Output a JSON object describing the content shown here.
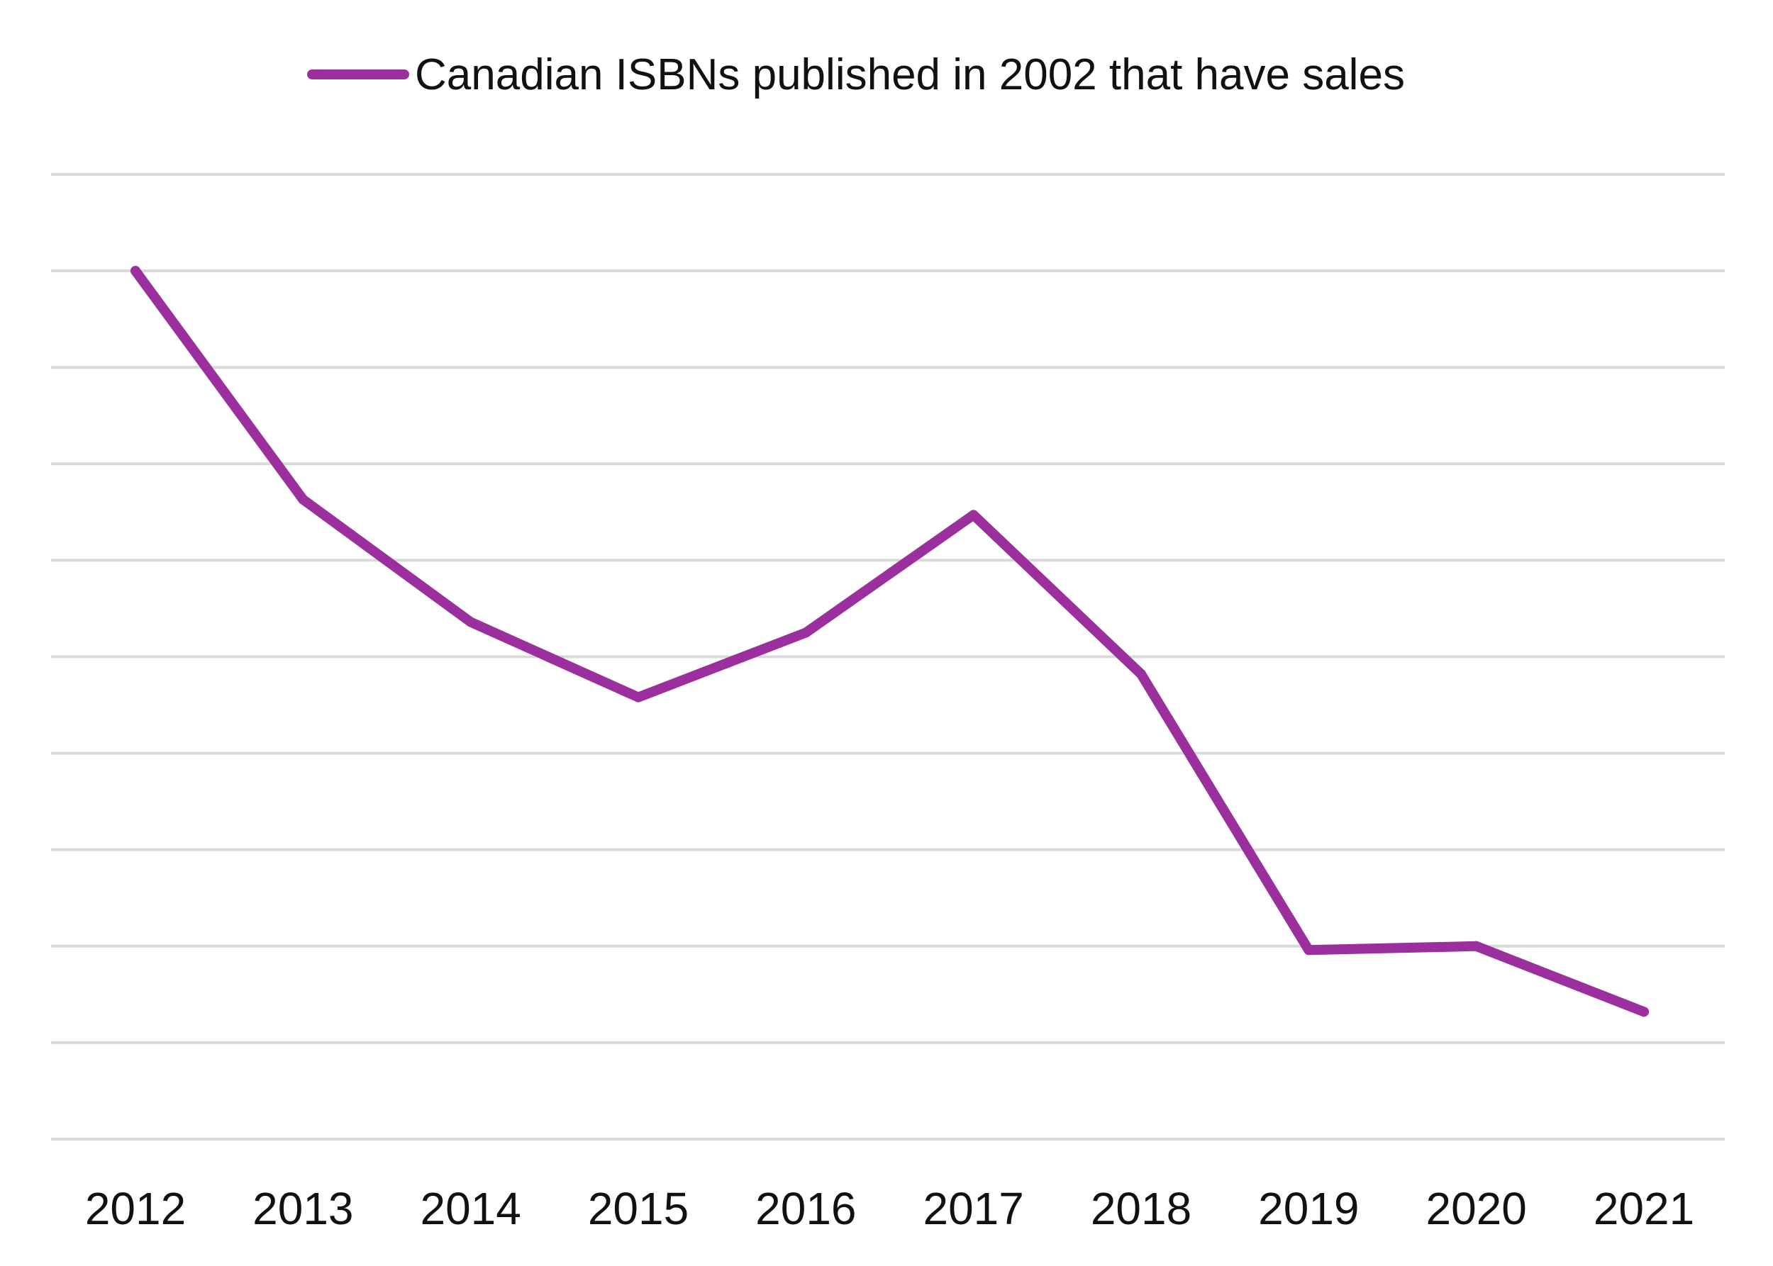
{
  "chart_data": {
    "type": "line",
    "title": "",
    "xlabel": "",
    "ylabel": "",
    "categories": [
      "2012",
      "2013",
      "2014",
      "2015",
      "2016",
      "2017",
      "2018",
      "2019",
      "2020",
      "2021"
    ],
    "series": [
      {
        "name": "Canadian ISBNs published in 2002 that have sales",
        "color": "#9b2f9e",
        "values": [
          9.0,
          6.63,
          5.36,
          4.58,
          5.25,
          6.47,
          4.82,
          1.96,
          2.0,
          1.32
        ]
      }
    ],
    "ylim": [
      0,
      10
    ],
    "y_gridlines": 11,
    "y_tick_labels_shown": false,
    "grid": true,
    "legend": "top-center"
  }
}
